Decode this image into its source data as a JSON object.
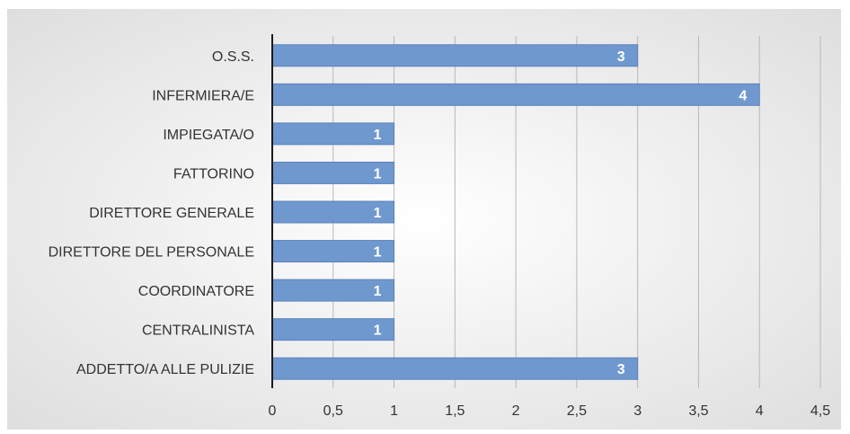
{
  "chart_data": {
    "type": "bar",
    "orientation": "horizontal",
    "title": "",
    "xlabel": "",
    "ylabel": "",
    "categories": [
      "O.S.S.",
      "INFERMIERA/E",
      "IMPIEGATA/O",
      "FATTORINO",
      "DIRETTORE GENERALE",
      "DIRETTORE DEL PERSONALE",
      "COORDINATORE",
      "CENTRALINISTA",
      "ADDETTO/A ALLE PULIZIE"
    ],
    "values": [
      3,
      4,
      1,
      1,
      1,
      1,
      1,
      1,
      3
    ],
    "value_labels": [
      "3",
      "4",
      "1",
      "1",
      "1",
      "1",
      "1",
      "1",
      "3"
    ],
    "xlim": [
      0,
      4.5
    ],
    "x_ticks": [
      0,
      0.5,
      1,
      1.5,
      2,
      2.5,
      3,
      3.5,
      4,
      4.5
    ],
    "x_tick_labels": [
      "0",
      "0,5",
      "1",
      "1,5",
      "2",
      "2,5",
      "3",
      "3,5",
      "4",
      "4,5"
    ],
    "grid": true,
    "legend": "none",
    "colors": {
      "bar": "#6f98cf",
      "bar_edge": "#5a82bb",
      "grid": "#b8b8b8",
      "axis": "#1a1a1a",
      "bg_center": "#ffffff",
      "bg_edge": "#dcdcdc",
      "text": "#333333",
      "value_label": "#ffffff"
    }
  }
}
